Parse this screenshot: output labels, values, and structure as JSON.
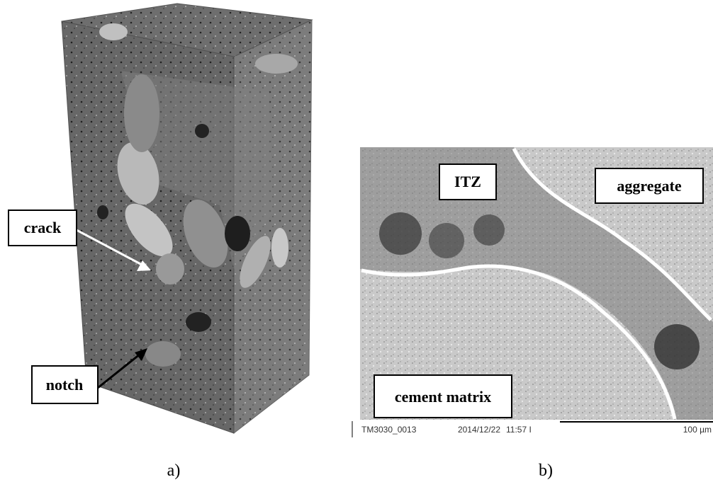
{
  "panel_a": {
    "labels": {
      "crack": "crack",
      "notch": "notch"
    },
    "caption": "a)"
  },
  "panel_b": {
    "labels": {
      "itz": "ITZ",
      "aggregate": "aggregate",
      "cement_matrix": "cement matrix"
    },
    "footer": {
      "id": "TM3030_0013",
      "date": "2014/12/22",
      "time": "11:57 I",
      "scale": "100 µm"
    },
    "caption": "b)"
  }
}
